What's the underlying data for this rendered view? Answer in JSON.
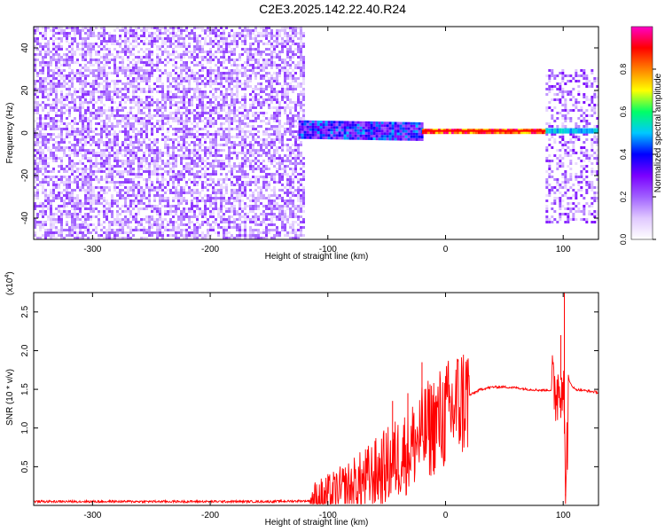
{
  "title": "C2E3.2025.142.22.40.R24",
  "chart_data": [
    {
      "type": "heatmap",
      "xlabel": "Height of straight line (km)",
      "ylabel": "Frequency (Hz)",
      "xlim": [
        -350,
        130
      ],
      "ylim": [
        -50,
        50
      ],
      "x_ticks": [
        "-300",
        "-200",
        "-100",
        "0",
        "100"
      ],
      "y_ticks": [
        "-40",
        "-20",
        "0",
        "20",
        "40"
      ],
      "x_tick_values": [
        -300,
        -200,
        -100,
        0,
        100
      ],
      "y_tick_values": [
        -40,
        -20,
        0,
        20,
        40
      ],
      "regions": [
        {
          "x_range": [
            -350,
            -120
          ],
          "freq_range": [
            -50,
            50
          ],
          "amplitude_range": [
            0.05,
            0.25
          ],
          "description": "broadband noise"
        },
        {
          "x_range": [
            -125,
            -20
          ],
          "center_freq_start": 2,
          "center_freq_end": 1,
          "spread_hz": 4,
          "amplitude_range": [
            0.2,
            0.5
          ]
        },
        {
          "x_range": [
            -20,
            85
          ],
          "center_freq": 1,
          "spread_hz": 1,
          "amplitude_range": [
            0.7,
            1.0
          ]
        },
        {
          "x_range": [
            85,
            130
          ],
          "freq_range": [
            -42,
            30
          ],
          "amplitude_range": [
            0.05,
            0.3
          ],
          "center_line_amplitude": 0.45
        }
      ],
      "colorbar": {
        "label": "Normalized spectral amplitude",
        "range": [
          0,
          1
        ],
        "ticks": [
          "0.0",
          "0.2",
          "0.4",
          "0.6",
          "0.8"
        ],
        "tick_values": [
          0.0,
          0.2,
          0.4,
          0.6,
          0.8
        ],
        "colors": [
          "#ffffff",
          "#e0c8ff",
          "#a060ff",
          "#7a00ff",
          "#0000ff",
          "#00c8ff",
          "#00ff66",
          "#ffff00",
          "#ff8000",
          "#ff0000",
          "#ff00c8"
        ]
      },
      "series_color": "#ff0000"
    },
    {
      "type": "line",
      "xlabel": "Height of straight line (km)",
      "ylabel": "SNR (10 * v/v)",
      "y_multiplier": "(x10",
      "y_multiplier_exp": "4",
      "y_multiplier_close": ")",
      "xlim": [
        -350,
        130
      ],
      "ylim": [
        0,
        2.75
      ],
      "x_ticks": [
        "-300",
        "-200",
        "-100",
        "0",
        "100"
      ],
      "y_ticks": [
        "0.5",
        "1.0",
        "1.5",
        "2.0",
        "2.5"
      ],
      "x_tick_values": [
        -300,
        -200,
        -100,
        0,
        100
      ],
      "y_tick_values": [
        0.5,
        1.0,
        1.5,
        2.0,
        2.5
      ],
      "color": "#ff0000",
      "series": [
        {
          "x": [
            -350,
            -300,
            -250,
            -200,
            -150,
            -110,
            -100,
            -90,
            -80,
            -70,
            -60,
            -50,
            -40,
            -30,
            -20,
            -10,
            0,
            10,
            20,
            30,
            40,
            50,
            60,
            70,
            80,
            90,
            95,
            100,
            102,
            105,
            110,
            120,
            130
          ],
          "y": [
            0.05,
            0.05,
            0.05,
            0.05,
            0.05,
            0.06,
            0.1,
            0.15,
            0.22,
            0.3,
            0.4,
            0.5,
            0.62,
            0.75,
            0.9,
            1.05,
            1.15,
            1.3,
            1.42,
            1.5,
            1.53,
            1.53,
            1.52,
            1.5,
            1.49,
            1.49,
            1.5,
            1.7,
            0.15,
            1.6,
            1.5,
            1.48,
            1.46
          ],
          "spikes": [
            [
              -20,
              1.85
            ],
            [
              -45,
              1.35
            ],
            [
              -32,
              1.45
            ],
            [
              98,
              2.2
            ],
            [
              101,
              2.75
            ],
            [
              102,
              0.12
            ]
          ]
        }
      ]
    }
  ]
}
